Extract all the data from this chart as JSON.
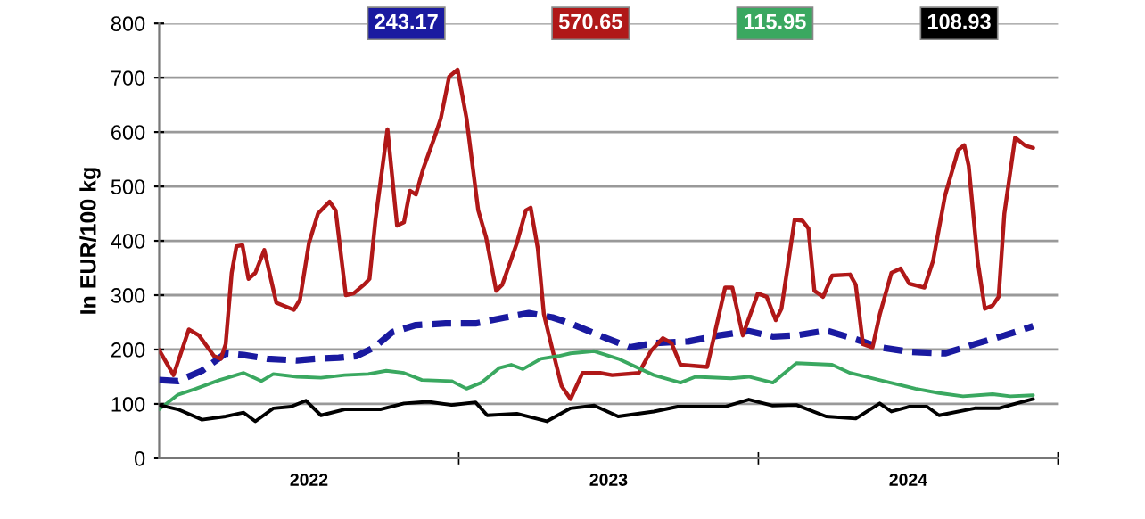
{
  "chart_data": {
    "type": "line",
    "ylabel": "In EUR/100 kg",
    "xlim": [
      2022,
      2025
    ],
    "ylim": [
      0,
      800
    ],
    "yticks": [
      0,
      100,
      200,
      300,
      400,
      500,
      600,
      700,
      800
    ],
    "xticks": [
      {
        "value": 2022.5,
        "label": "2022"
      },
      {
        "value": 2023,
        "label": null
      },
      {
        "value": 2023.5,
        "label": "2023"
      },
      {
        "value": 2024,
        "label": null
      },
      {
        "value": 2024.5,
        "label": "2024"
      },
      {
        "value": 2025,
        "label": null
      }
    ],
    "grid": "y",
    "legend": "top",
    "marker": "none",
    "series": [
      {
        "name": "243.17",
        "color": "#1a1aa0",
        "line_style": "dashed",
        "x": [
          2022.0,
          2022.063,
          2022.143,
          2022.222,
          2022.282,
          2022.361,
          2022.46,
          2022.52,
          2022.599,
          2022.659,
          2022.718,
          2022.778,
          2022.857,
          2022.956,
          2023.056,
          2023.155,
          2023.234,
          2023.313,
          2023.373,
          2023.492,
          2023.571,
          2023.651,
          2023.766,
          2023.869,
          2023.968,
          2024.048,
          2024.127,
          2024.226,
          2024.325,
          2024.405,
          2024.504,
          2024.623,
          2024.722,
          2024.821,
          2024.917
        ],
        "values": [
          144,
          142,
          161,
          193,
          190,
          183,
          180,
          183,
          185,
          188,
          204,
          232,
          245,
          248,
          248,
          259,
          267,
          259,
          248,
          221,
          204,
          212,
          215,
          226,
          234,
          224,
          226,
          235,
          219,
          204,
          196,
          193,
          210,
          226,
          243
        ]
      },
      {
        "name": "570.65",
        "color": "#b01818",
        "line_style": "solid",
        "x": [
          2022.0,
          2022.048,
          2022.099,
          2022.133,
          2022.183,
          2022.206,
          2022.222,
          2022.242,
          2022.258,
          2022.278,
          2022.298,
          2022.321,
          2022.351,
          2022.391,
          2022.45,
          2022.47,
          2022.5,
          2022.53,
          2022.569,
          2022.589,
          2022.623,
          2022.649,
          2022.683,
          2022.702,
          2022.722,
          2022.762,
          2022.794,
          2022.817,
          2022.837,
          2022.857,
          2022.881,
          2022.917,
          2022.94,
          2022.968,
          2022.996,
          2023.026,
          2023.065,
          2023.091,
          2023.125,
          2023.145,
          2023.194,
          2023.224,
          2023.24,
          2023.264,
          2023.284,
          2023.313,
          2023.343,
          2023.373,
          2023.413,
          2023.472,
          2023.512,
          2023.601,
          2023.641,
          2023.681,
          2023.71,
          2023.74,
          2023.829,
          2023.889,
          2023.913,
          2023.948,
          2023.998,
          2024.028,
          2024.058,
          2024.077,
          2024.121,
          2024.147,
          2024.167,
          2024.187,
          2024.216,
          2024.246,
          2024.306,
          2024.325,
          2024.349,
          2024.381,
          2024.405,
          2024.444,
          2024.474,
          2024.504,
          2024.554,
          2024.583,
          2024.623,
          2024.667,
          2024.687,
          2024.702,
          2024.732,
          2024.756,
          2024.782,
          2024.802,
          2024.821,
          2024.857,
          2024.891,
          2024.917
        ],
        "values": [
          199,
          153,
          237,
          226,
          188,
          183,
          210,
          341,
          390,
          392,
          330,
          341,
          383,
          286,
          273,
          292,
          396,
          450,
          472,
          456,
          300,
          303,
          319,
          330,
          439,
          605,
          428,
          434,
          492,
          485,
          532,
          587,
          625,
          702,
          715,
          625,
          456,
          407,
          308,
          319,
          396,
          456,
          461,
          385,
          265,
          199,
          133,
          109,
          157,
          157,
          153,
          157,
          197,
          221,
          212,
          172,
          168,
          314,
          314,
          226,
          303,
          297,
          254,
          275,
          439,
          437,
          423,
          308,
          297,
          336,
          338,
          319,
          210,
          204,
          264,
          341,
          349,
          321,
          314,
          363,
          483,
          567,
          576,
          538,
          363,
          275,
          281,
          297,
          450,
          590,
          575,
          571
        ]
      },
      {
        "name": "115.95",
        "color": "#3aa860",
        "line_style": "solid",
        "x": [
          2022.0,
          2022.063,
          2022.123,
          2022.202,
          2022.282,
          2022.341,
          2022.381,
          2022.46,
          2022.54,
          2022.619,
          2022.698,
          2022.758,
          2022.817,
          2022.877,
          2022.976,
          2023.026,
          2023.075,
          2023.135,
          2023.175,
          2023.214,
          2023.274,
          2023.333,
          2023.373,
          2023.452,
          2023.532,
          2023.651,
          2023.74,
          2023.79,
          2023.909,
          2023.968,
          2024.048,
          2024.127,
          2024.246,
          2024.306,
          2024.425,
          2024.524,
          2024.603,
          2024.683,
          2024.782,
          2024.841,
          2024.917
        ],
        "values": [
          90,
          117,
          128,
          144,
          157,
          142,
          155,
          150,
          148,
          153,
          155,
          161,
          157,
          144,
          142,
          128,
          139,
          166,
          172,
          164,
          183,
          188,
          193,
          197,
          183,
          153,
          139,
          150,
          147,
          150,
          139,
          175,
          172,
          157,
          141,
          128,
          120,
          114,
          118,
          114,
          116
        ]
      },
      {
        "name": "108.93",
        "color": "#000000",
        "line_style": "solid",
        "x": [
          2022.0,
          2022.063,
          2022.143,
          2022.222,
          2022.282,
          2022.321,
          2022.381,
          2022.44,
          2022.49,
          2022.54,
          2022.619,
          2022.738,
          2022.817,
          2022.897,
          2022.976,
          2023.056,
          2023.095,
          2023.194,
          2023.294,
          2023.373,
          2023.452,
          2023.532,
          2023.651,
          2023.73,
          2023.889,
          2023.968,
          2024.048,
          2024.127,
          2024.226,
          2024.325,
          2024.405,
          2024.444,
          2024.504,
          2024.563,
          2024.603,
          2024.722,
          2024.802,
          2024.861,
          2024.917
        ],
        "values": [
          98,
          90,
          71,
          77,
          84,
          68,
          92,
          95,
          106,
          79,
          90,
          90,
          101,
          104,
          98,
          103,
          79,
          82,
          68,
          92,
          97,
          77,
          86,
          95,
          95,
          108,
          97,
          98,
          77,
          73,
          101,
          86,
          95,
          95,
          79,
          92,
          92,
          101,
          109
        ]
      }
    ]
  }
}
